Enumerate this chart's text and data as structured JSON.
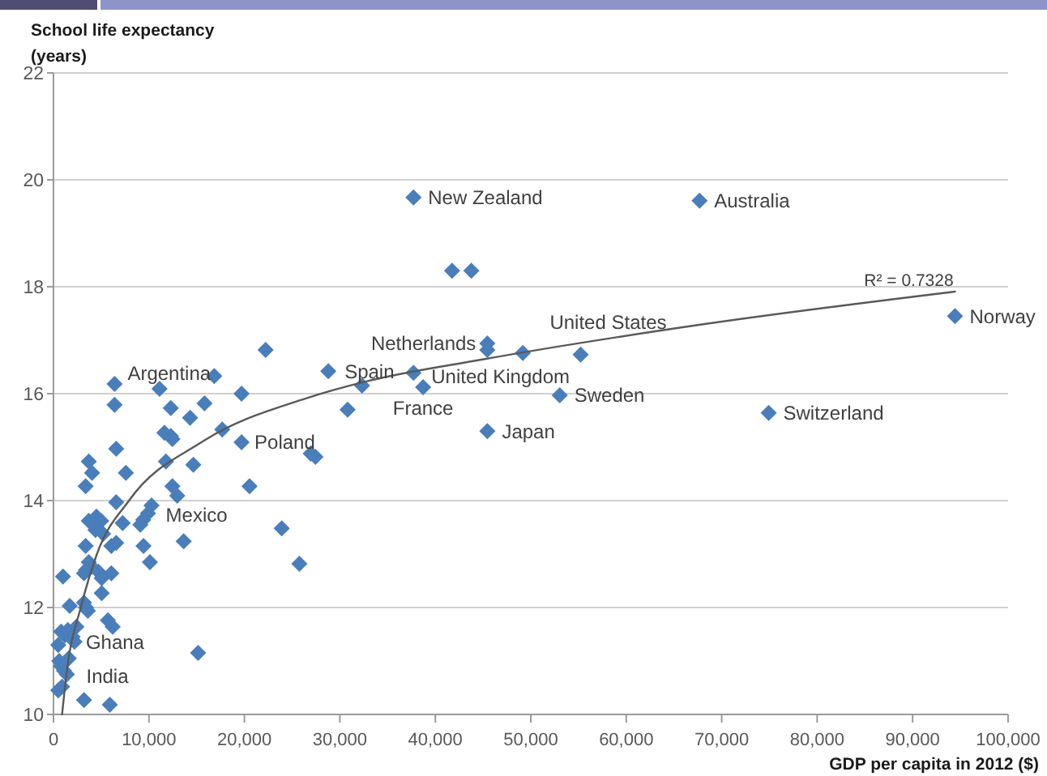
{
  "chart_data": {
    "type": "scatter",
    "ylabel": "School life expectancy (years)",
    "xlabel": "GDP per capita in 2012 ($)",
    "xlim": [
      0,
      100000
    ],
    "xticks": [
      0,
      {
        "value": 10000,
        "label": "10,000"
      },
      {
        "value": 20000,
        "label": "20,000"
      },
      {
        "value": 30000,
        "label": "30,000"
      },
      {
        "value": 40000,
        "label": "40,000"
      },
      {
        "value": 50000,
        "label": "50,000"
      },
      {
        "value": 60000,
        "label": "60,000"
      },
      {
        "value": 70000,
        "label": "70,000"
      },
      {
        "value": 80000,
        "label": "80,000"
      },
      {
        "value": 90000,
        "label": "90,000"
      },
      {
        "value": 100000,
        "label": "100,000"
      }
    ],
    "ylim": [
      10,
      22
    ],
    "yticks": [
      10,
      12,
      14,
      16,
      18,
      20,
      22
    ],
    "grid": "y",
    "series": [
      {
        "color": "#4a7ebb",
        "marker": "diamond",
        "x": [
          500,
          500,
          900,
          1000,
          1700,
          800,
          1200,
          1500,
          2000,
          2400,
          2200,
          600,
          800,
          1100,
          1400,
          1600,
          3200,
          3400,
          3600,
          5700,
          6200,
          3200,
          5900,
          15150,
          5050,
          3700,
          4000,
          3400,
          3200,
          4700,
          5050,
          6060,
          10100,
          25760,
          3370,
          6060,
          6570,
          9430,
          13640,
          23910,
          7240,
          3700,
          4500,
          5000,
          4400,
          5200,
          9900,
          9400,
          9100,
          10270,
          6570,
          3370,
          12460,
          12960,
          20540,
          3700,
          4040,
          7580,
          11780,
          14650,
          27440,
          26940,
          6570,
          19700,
          11620,
          12290,
          12460,
          17680,
          14310,
          6400,
          12290,
          15820,
          30810,
          19700,
          11110,
          6400,
          16840,
          22220,
          28790,
          32320,
          37710,
          38720,
          45450,
          45450,
          49160,
          55220,
          53030,
          45450,
          74920,
          94440,
          41750,
          43770,
          37710,
          67680
        ],
        "values": [
          11.3,
          10.45,
          10.52,
          12.58,
          12.03,
          11.55,
          11.48,
          11.58,
          11.45,
          11.64,
          11.36,
          11.0,
          10.9,
          10.82,
          10.75,
          11.05,
          12.09,
          12.0,
          11.94,
          11.76,
          11.64,
          10.27,
          10.18,
          11.15,
          12.27,
          12.85,
          12.76,
          12.7,
          12.64,
          12.67,
          12.55,
          12.64,
          12.85,
          12.82,
          13.15,
          13.15,
          13.21,
          13.15,
          13.24,
          13.48,
          13.58,
          13.62,
          13.7,
          13.62,
          13.45,
          13.38,
          13.76,
          13.64,
          13.55,
          13.91,
          13.97,
          14.27,
          14.27,
          14.09,
          14.27,
          14.73,
          14.52,
          14.52,
          14.73,
          14.67,
          14.82,
          14.88,
          14.97,
          15.09,
          15.27,
          15.21,
          15.15,
          15.33,
          15.55,
          15.79,
          15.73,
          15.82,
          15.7,
          16.0,
          16.09,
          16.18,
          16.33,
          16.82,
          16.42,
          16.15,
          16.39,
          16.12,
          16.94,
          16.82,
          16.76,
          16.73,
          15.97,
          15.3,
          15.64,
          17.45,
          18.3,
          18.3,
          19.67,
          19.61
        ]
      },
      {
        "type": "line",
        "color": "#595959",
        "x": [
          900,
          1460,
          2860,
          4550,
          7910,
          15490,
          26770,
          32320,
          44950,
          67340,
          94440
        ],
        "values": [
          10,
          10.9,
          12,
          13,
          14,
          15.09,
          15.93,
          16.21,
          16.64,
          17.28,
          17.91
        ]
      }
    ],
    "annotations": [
      {
        "text": "New Zealand",
        "x": 37710,
        "y": 19.67
      },
      {
        "text": "Australia",
        "x": 67680,
        "y": 19.61
      },
      {
        "text": "Norway",
        "x": 94440,
        "y": 17.45
      },
      {
        "text": "United States",
        "x": 55220,
        "y": 16.73
      },
      {
        "text": "Netherlands",
        "x": 45450,
        "y": 16.94
      },
      {
        "text": "United Kingdom",
        "x": 37710,
        "y": 16.39
      },
      {
        "text": "Spain",
        "x": 28790,
        "y": 16.42
      },
      {
        "text": "France",
        "x": 38720,
        "y": 16.12
      },
      {
        "text": "Sweden",
        "x": 53030,
        "y": 15.97
      },
      {
        "text": "Japan",
        "x": 45450,
        "y": 15.3
      },
      {
        "text": "Switzerland",
        "x": 74920,
        "y": 15.64
      },
      {
        "text": "Argentina",
        "x": 6400,
        "y": 16.18
      },
      {
        "text": "Poland",
        "x": 19700,
        "y": 15.09
      },
      {
        "text": "Mexico",
        "x": 9900,
        "y": 13.76
      },
      {
        "text": "Ghana",
        "x": 2200,
        "y": 11.36
      },
      {
        "text": "India",
        "x": 1400,
        "y": 10.75
      },
      {
        "text": "R² = 0.7328",
        "x": 89600,
        "y": 17.8
      }
    ]
  }
}
